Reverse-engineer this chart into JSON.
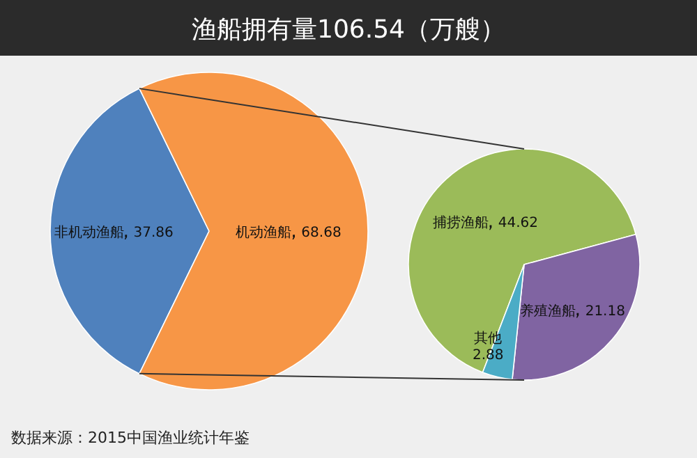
{
  "chart_data": [
    {
      "type": "pie",
      "title": "渔船拥有量106.54（万艘）",
      "categories": [
        "非机动渔船",
        "机动渔船"
      ],
      "values": [
        37.86,
        68.68
      ],
      "colors": [
        "#4f81bd",
        "#f79646"
      ],
      "data_labels": true,
      "annotations": [
        "数据来源：2015中国渔业统计年鉴"
      ]
    },
    {
      "type": "pie",
      "categories": [
        "捕捞渔船",
        "养殖渔船",
        "其他"
      ],
      "values": [
        44.62,
        21.18,
        2.88
      ],
      "colors": [
        "#9bbb59",
        "#8064a2",
        "#4bacc6"
      ],
      "data_labels": true
    }
  ]
}
